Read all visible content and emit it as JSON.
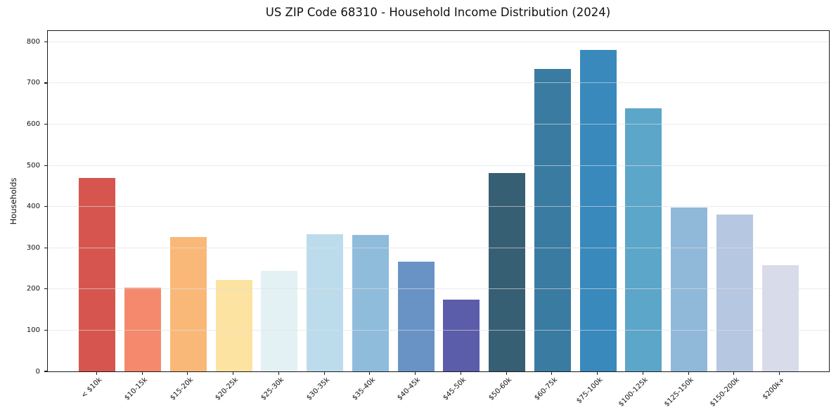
{
  "chart_data": {
    "type": "bar",
    "title": "US ZIP Code 68310 - Household Income Distribution (2024)",
    "xlabel": "",
    "ylabel": "Households",
    "categories": [
      "< $10k",
      "$10-15k",
      "$15-20k",
      "$20-25k",
      "$25-30k",
      "$30-35k",
      "$35-40k",
      "$40-45k",
      "$45-50k",
      "$50-60k",
      "$60-75k",
      "$75-100k",
      "$100-125k",
      "$125-150k",
      "$150-200k",
      "$200k+"
    ],
    "values": [
      470,
      203,
      326,
      222,
      244,
      333,
      332,
      267,
      174,
      482,
      734,
      780,
      639,
      397,
      381,
      257
    ],
    "bar_colors": [
      "#d6564f",
      "#f5896d",
      "#fab878",
      "#fde3a1",
      "#e4f1f4",
      "#bcdcec",
      "#90bcdc",
      "#6a93c5",
      "#5b5caa",
      "#375f73",
      "#3a7ba1",
      "#3989bd",
      "#5ca6c9",
      "#90b8d9",
      "#b6c7e1",
      "#d8dbe9"
    ],
    "yticks": [
      0,
      100,
      200,
      300,
      400,
      500,
      600,
      700,
      800
    ],
    "ylim": [
      0,
      828
    ],
    "grid": "horizontal-only",
    "legend": "none",
    "background_color": "#ffffff",
    "spine_color": "#1b1b1b",
    "grid_color": "#e8e8e8",
    "text_color": "#111111"
  }
}
